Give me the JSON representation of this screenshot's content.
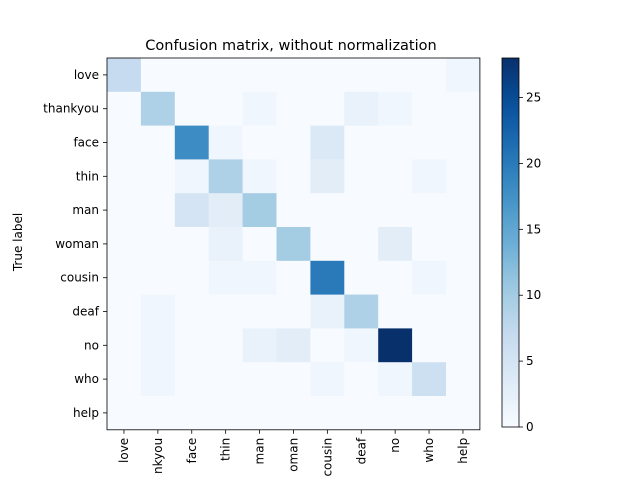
{
  "chart_data": {
    "type": "heatmap",
    "title": "Confusion matrix, without normalization",
    "ylabel": "True label",
    "xlabel": "",
    "row_labels": [
      "love",
      "thankyou",
      "face",
      "thin",
      "man",
      "woman",
      "cousin",
      "deaf",
      "no",
      "who",
      "help"
    ],
    "col_labels_display": [
      "love",
      "nkyou",
      "face",
      "thin",
      "man",
      "oman",
      "cousin",
      "deaf",
      "no",
      "who",
      "help"
    ],
    "values": [
      [
        7,
        0,
        0,
        0,
        0,
        0,
        0,
        0,
        0,
        0,
        1
      ],
      [
        0,
        9,
        0,
        0,
        1,
        0,
        0,
        2,
        1,
        0,
        0
      ],
      [
        0,
        0,
        18,
        1,
        0,
        0,
        4,
        0,
        0,
        0,
        0
      ],
      [
        0,
        0,
        1,
        9,
        1,
        0,
        3,
        0,
        0,
        1,
        0
      ],
      [
        0,
        0,
        5,
        3,
        10,
        0,
        0,
        0,
        0,
        0,
        0
      ],
      [
        0,
        0,
        0,
        2,
        0,
        10,
        0,
        0,
        3,
        0,
        0
      ],
      [
        0,
        0,
        0,
        1,
        1,
        0,
        20,
        0,
        0,
        1,
        0
      ],
      [
        0,
        1,
        0,
        0,
        0,
        0,
        2,
        9,
        0,
        0,
        0
      ],
      [
        0,
        1,
        0,
        0,
        2,
        3,
        0,
        1,
        28,
        0,
        0
      ],
      [
        0,
        1,
        0,
        0,
        0,
        0,
        1,
        0,
        1,
        6,
        0
      ],
      [
        0,
        0,
        0,
        0,
        0,
        0,
        0,
        0,
        0,
        0,
        0
      ]
    ],
    "colormap": "Blues",
    "colorbar": {
      "range": [
        0,
        28
      ],
      "ticks": [
        0,
        5,
        10,
        15,
        20,
        25
      ]
    },
    "grid": false
  }
}
